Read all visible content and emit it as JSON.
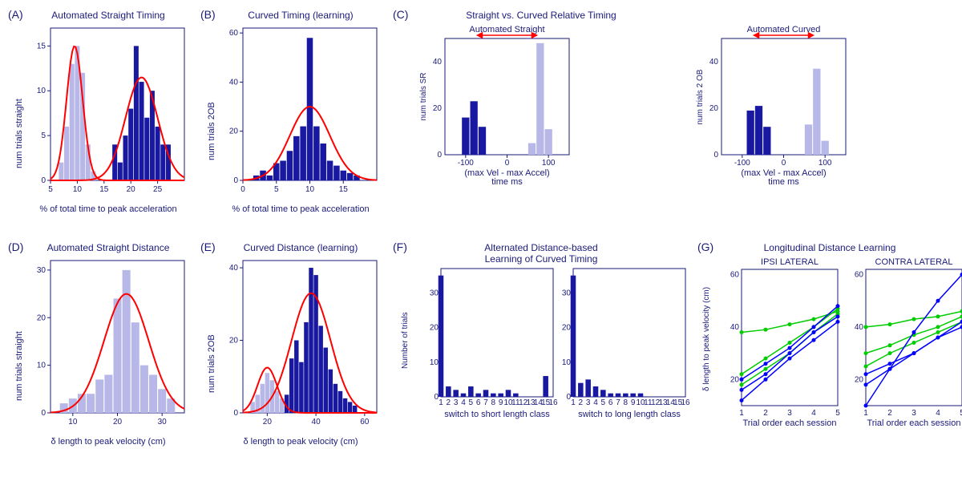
{
  "panels": {
    "A": {
      "label": "(A)",
      "title": "Automated Straight Timing",
      "ylabel": "num trials straight",
      "xlabel": "% of total time to peak acceleration",
      "xlim": [
        5,
        30
      ],
      "ylim": [
        0,
        17
      ],
      "xticks": [
        5,
        10,
        15,
        20,
        25
      ],
      "yticks": [
        0,
        5,
        10,
        15
      ],
      "light_bars": {
        "x": [
          7,
          8,
          9,
          10,
          11,
          12,
          13
        ],
        "h": [
          2,
          6,
          13,
          15,
          12,
          4,
          1
        ]
      },
      "dark_bars": {
        "x": [
          17,
          18,
          19,
          20,
          21,
          22,
          23,
          24,
          25,
          26,
          27
        ],
        "h": [
          4,
          2,
          5,
          8,
          15,
          11,
          7,
          10,
          6,
          4,
          4
        ]
      },
      "gauss": [
        {
          "mu": 9.5,
          "sigma": 1.5,
          "amp": 15
        },
        {
          "mu": 22,
          "sigma": 3,
          "amp": 11.5
        }
      ],
      "colors": {
        "dark": "#1818a0",
        "light": "#b8b8e8",
        "gauss": "#ff0000"
      }
    },
    "B": {
      "label": "(B)",
      "title": "Curved Timing (learning)",
      "ylabel": "num trials 2OB",
      "xlabel": "% of total time to peak acceleration",
      "xlim": [
        0,
        20
      ],
      "ylim": [
        0,
        62
      ],
      "xticks": [
        0,
        5,
        10,
        15
      ],
      "yticks": [
        0,
        20,
        40,
        60
      ],
      "dark_bars": {
        "x": [
          2,
          3,
          4,
          5,
          6,
          7,
          8,
          9,
          10,
          11,
          12,
          13,
          14,
          15,
          16,
          17
        ],
        "h": [
          2,
          4,
          2,
          7,
          8,
          12,
          18,
          22,
          58,
          22,
          15,
          8,
          6,
          4,
          3,
          2
        ]
      },
      "gauss": [
        {
          "mu": 10,
          "sigma": 3,
          "amp": 30
        }
      ],
      "colors": {
        "dark": "#1818a0",
        "gauss": "#ff0000"
      }
    },
    "C": {
      "label": "(C)",
      "title": "Straight vs. Curved Relative Timing",
      "sub_left": "Automated Straight",
      "sub_right": "Automated Curved",
      "ylabel_left": "num trials SR",
      "ylabel_right": "num trials 2 OB",
      "xlabel": "(max Vel - max Accel)\ntime ms",
      "xlim": [
        -150,
        150
      ],
      "ylim": [
        0,
        50
      ],
      "xticks": [
        -100,
        0,
        100
      ],
      "yticks": [
        0,
        20,
        40
      ],
      "left": {
        "dark": {
          "x": [
            -100,
            -80,
            -60
          ],
          "h": [
            16,
            23,
            12
          ]
        },
        "light": {
          "x": [
            60,
            80,
            100
          ],
          "h": [
            5,
            48,
            11
          ]
        }
      },
      "right": {
        "dark": {
          "x": [
            -80,
            -60,
            -40
          ],
          "h": [
            19,
            21,
            12
          ]
        },
        "light": {
          "x": [
            60,
            80,
            100
          ],
          "h": [
            13,
            37,
            6
          ]
        }
      },
      "colors": {
        "dark": "#1818a0",
        "light": "#b8b8e8",
        "arrow": "#ff0000"
      }
    },
    "D": {
      "label": "(D)",
      "title": "Automated Straight Distance",
      "ylabel": "num trials straight",
      "xlabel": "δ length to peak velocity (cm)",
      "xlim": [
        5,
        35
      ],
      "ylim": [
        0,
        32
      ],
      "xticks": [
        10,
        20,
        30
      ],
      "yticks": [
        0,
        10,
        20,
        30
      ],
      "light_bars": {
        "x": [
          8,
          10,
          12,
          14,
          16,
          18,
          20,
          22,
          24,
          26,
          28,
          30,
          32
        ],
        "h": [
          2,
          3,
          4,
          4,
          7,
          8,
          24,
          30,
          19,
          10,
          8,
          5,
          3
        ]
      },
      "gauss": [
        {
          "mu": 22,
          "sigma": 5,
          "amp": 25
        }
      ],
      "colors": {
        "light": "#b8b8e8",
        "gauss": "#ff0000"
      }
    },
    "E": {
      "label": "(E)",
      "title": "Curved Distance (learning)",
      "ylabel": "num trials 2OB",
      "xlabel": "δ length to peak velocity (cm)",
      "xlim": [
        10,
        65
      ],
      "ylim": [
        0,
        42
      ],
      "xticks": [
        20,
        40,
        60
      ],
      "yticks": [
        0,
        20,
        40
      ],
      "light_bars": {
        "x": [
          14,
          16,
          18,
          20,
          22,
          24,
          26,
          28
        ],
        "h": [
          3,
          5,
          8,
          11,
          9,
          6,
          4,
          2
        ]
      },
      "dark_bars": {
        "x": [
          28,
          30,
          32,
          34,
          36,
          38,
          40,
          42,
          44,
          46,
          48,
          50,
          52,
          54,
          56
        ],
        "h": [
          5,
          15,
          20,
          14,
          25,
          40,
          38,
          24,
          18,
          12,
          8,
          6,
          4,
          3,
          2
        ]
      },
      "gauss": [
        {
          "mu": 20,
          "sigma": 4,
          "amp": 12.5
        },
        {
          "mu": 38,
          "sigma": 8,
          "amp": 33
        }
      ],
      "colors": {
        "dark": "#1818a0",
        "light": "#b8b8e8",
        "gauss": "#ff0000"
      }
    },
    "F": {
      "label": "(F)",
      "title": "Alternated Distance-based\nLearning of Curved Timing",
      "ylabel": "Number of trials",
      "xlabel_left": "switch to short length class",
      "xlabel_right": "switch to long length class",
      "xlim": [
        1,
        16
      ],
      "ylim": [
        0,
        37
      ],
      "xticks": [
        1,
        2,
        3,
        4,
        5,
        6,
        7,
        8,
        9,
        10,
        11,
        12,
        13,
        14,
        15,
        16
      ],
      "yticks": [
        0,
        10,
        20,
        30
      ],
      "left": {
        "x": [
          1,
          2,
          3,
          4,
          5,
          6,
          7,
          8,
          9,
          10,
          11,
          15
        ],
        "h": [
          35,
          3,
          2,
          1,
          3,
          1,
          2,
          1,
          1,
          2,
          1,
          6
        ]
      },
      "right": {
        "x": [
          1,
          2,
          3,
          4,
          5,
          6,
          7,
          8,
          9,
          10
        ],
        "h": [
          35,
          4,
          5,
          3,
          2,
          1,
          1,
          1,
          1,
          1
        ]
      },
      "colors": {
        "dark": "#1818a0"
      }
    },
    "G": {
      "label": "(G)",
      "title": "Longitudinal Distance Learning",
      "sub_left": "IPSI LATERAL",
      "sub_right": "CONTRA LATERAL",
      "ylabel": "δ length to peak velocity (cm)",
      "xlabel": "Trial order each session",
      "xlim": [
        1,
        5
      ],
      "ylim": [
        10,
        62
      ],
      "xticks": [
        1,
        2,
        3,
        4,
        5
      ],
      "yticks": [
        20,
        40,
        60
      ],
      "left": {
        "green": [
          [
            18,
            24,
            30,
            38,
            45
          ],
          [
            38,
            39,
            41,
            43,
            46
          ],
          [
            22,
            28,
            34,
            40,
            47
          ]
        ],
        "blue": [
          [
            16,
            22,
            30,
            38,
            44
          ],
          [
            12,
            20,
            28,
            35,
            42
          ],
          [
            20,
            26,
            32,
            40,
            48
          ]
        ]
      },
      "right": {
        "green": [
          [
            40,
            41,
            43,
            44,
            46
          ],
          [
            25,
            30,
            34,
            38,
            42
          ],
          [
            30,
            33,
            37,
            40,
            44
          ]
        ],
        "blue": [
          [
            10,
            24,
            38,
            50,
            60
          ],
          [
            18,
            24,
            30,
            36,
            42
          ],
          [
            22,
            26,
            30,
            36,
            40
          ]
        ]
      },
      "colors": {
        "green": "#00cc00",
        "blue": "#0000ff"
      }
    }
  }
}
